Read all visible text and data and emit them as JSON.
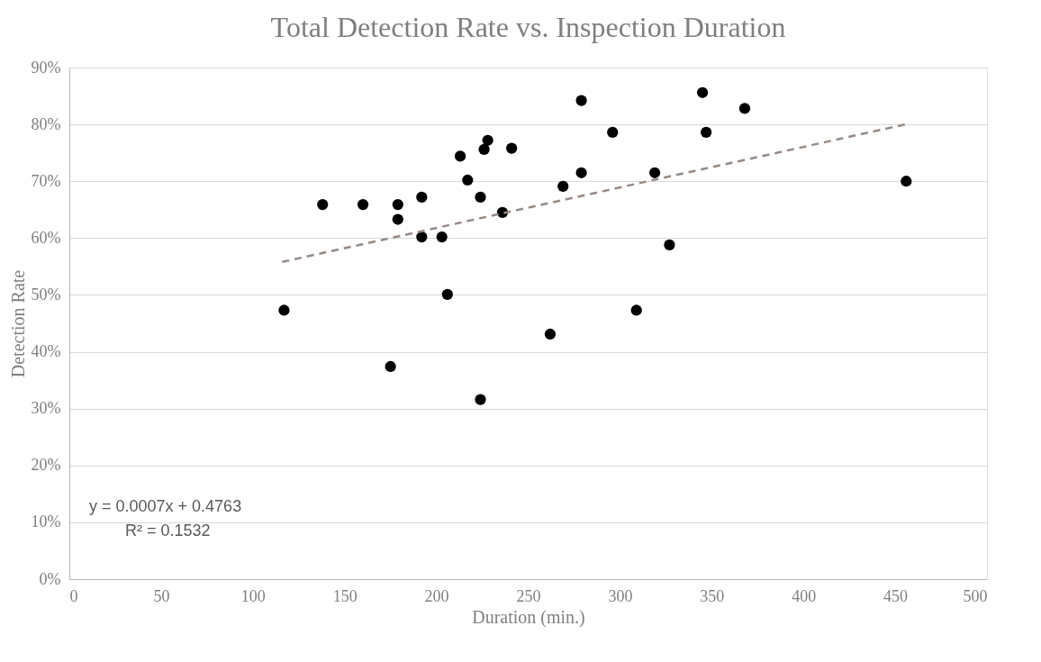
{
  "chart_data": {
    "type": "scatter",
    "title": "Total Detection Rate vs. Inspection Duration",
    "xlabel": "Duration (min.)",
    "ylabel": "Detection Rate",
    "xlim": [
      0,
      500
    ],
    "xticks": [
      0,
      50,
      100,
      150,
      200,
      250,
      300,
      350,
      400,
      450,
      500
    ],
    "ylim": [
      0,
      90
    ],
    "yticks": [
      {
        "value": 0,
        "label": "0%"
      },
      {
        "value": 10,
        "label": "10%"
      },
      {
        "value": 20,
        "label": "20%"
      },
      {
        "value": 30,
        "label": "30%"
      },
      {
        "value": 40,
        "label": "40%"
      },
      {
        "value": 50,
        "label": "50%"
      },
      {
        "value": 60,
        "label": "60%"
      },
      {
        "value": 70,
        "label": "70%"
      },
      {
        "value": 80,
        "label": "80%"
      },
      {
        "value": 90,
        "label": "90%"
      }
    ],
    "grid": "y",
    "marker": "circle",
    "series": [
      {
        "color": "#000000",
        "x": [
          117,
          138,
          160,
          179,
          179,
          192,
          192,
          203,
          206,
          175,
          213,
          217,
          224,
          226,
          228,
          224,
          236,
          241,
          262,
          269,
          279,
          279,
          296,
          309,
          319,
          327,
          345,
          347,
          368,
          456
        ],
        "values": [
          47.3,
          65.9,
          65.9,
          65.9,
          63.3,
          67.2,
          60.2,
          60.2,
          50.1,
          37.4,
          74.4,
          70.2,
          67.2,
          75.6,
          77.2,
          31.6,
          64.5,
          75.8,
          43.1,
          69.1,
          84.2,
          71.5,
          78.6,
          47.3,
          71.5,
          58.8,
          85.6,
          78.6,
          82.8,
          70.0
        ]
      },
      {
        "type": "line",
        "color": "#968a85",
        "line_style": "dashed",
        "marker": "none",
        "x": [
          116,
          457
        ],
        "values": [
          55.8,
          80.1
        ]
      }
    ],
    "annotations": [
      "y = 0.0007x + 0.4763",
      "R² = 0.1532"
    ]
  }
}
